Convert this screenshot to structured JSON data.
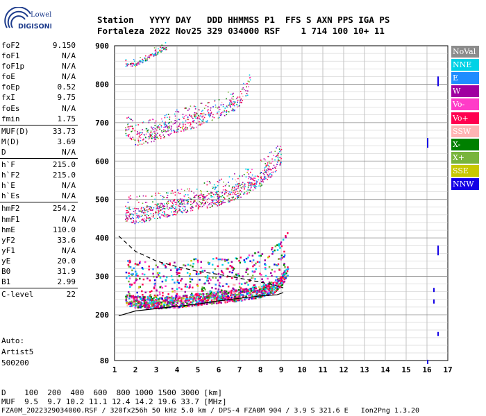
{
  "logo": {
    "line1": "Lowell",
    "line2": "DIGISONDE"
  },
  "header": {
    "line1": "Station   YYYY DAY   DDD HHMMSS P1  FFS S AXN PPS IGA PS",
    "line2": "Fortaleza 2022 Nov25 329 034000 RSF    1 714 100 10+ 11"
  },
  "params": [
    [
      {
        "k": "foF2",
        "v": "9.150"
      },
      {
        "k": "foF1",
        "v": "N/A"
      },
      {
        "k": "foF1p",
        "v": "N/A"
      },
      {
        "k": "foE",
        "v": "N/A"
      },
      {
        "k": "foEp",
        "v": "0.52"
      },
      {
        "k": "fxI",
        "v": "9.75"
      },
      {
        "k": "foEs",
        "v": "N/A"
      },
      {
        "k": "fmin",
        "v": "1.75"
      }
    ],
    [
      {
        "k": "MUF(D)",
        "v": "33.73"
      },
      {
        "k": "M(D)",
        "v": "3.69"
      },
      {
        "k": "D",
        "v": "N/A"
      }
    ],
    [
      {
        "k": "h`F",
        "v": "215.0"
      },
      {
        "k": "h`F2",
        "v": "215.0"
      },
      {
        "k": "h`E",
        "v": "N/A"
      },
      {
        "k": "h`Es",
        "v": "N/A"
      }
    ],
    [
      {
        "k": "hmF2",
        "v": "254.2"
      },
      {
        "k": "hmF1",
        "v": "N/A"
      },
      {
        "k": "hmE",
        "v": "110.0"
      },
      {
        "k": "yF2",
        "v": "33.6"
      },
      {
        "k": "yF1",
        "v": "N/A"
      },
      {
        "k": "yE",
        "v": "20.0"
      },
      {
        "k": "B0",
        "v": "31.9"
      },
      {
        "k": "B1",
        "v": "2.99"
      }
    ],
    [
      {
        "k": "C-level",
        "v": "22"
      }
    ]
  ],
  "auto": {
    "line1": "Auto:",
    "line2": "Artist5",
    "line3": "500200"
  },
  "legend": [
    {
      "label": "NoVal",
      "color": "#8c8c8c"
    },
    {
      "label": "NNE",
      "color": "#00d2e6"
    },
    {
      "label": "E",
      "color": "#1e8cff"
    },
    {
      "label": "W",
      "color": "#a000a0"
    },
    {
      "label": "Vo-",
      "color": "#ff3cc8"
    },
    {
      "label": "Vo+",
      "color": "#ff0050"
    },
    {
      "label": "SSW",
      "color": "#ffb4b4"
    },
    {
      "label": "X-",
      "color": "#008000"
    },
    {
      "label": "X+",
      "color": "#78b43c"
    },
    {
      "label": "SSE",
      "color": "#c8c800"
    },
    {
      "label": "NNW",
      "color": "#1400e6"
    }
  ],
  "chart_data": {
    "type": "scatter",
    "xlim": [
      1,
      17
    ],
    "ylim": [
      80,
      900
    ],
    "x_ticks": [
      "1",
      "2",
      "3",
      "4",
      "5",
      "6",
      "7",
      "8",
      "9",
      "10",
      "11",
      "12",
      "13",
      "14",
      "15",
      "16",
      "17"
    ],
    "y_ticks": [
      "900",
      "800",
      "700",
      "600",
      "500",
      "400",
      "300",
      "200",
      "80"
    ],
    "grid": true,
    "traces": [
      {
        "name": "F trace (1st hop)",
        "points": [
          [
            1.5,
            232
          ],
          [
            2,
            228
          ],
          [
            3,
            225
          ],
          [
            4,
            228
          ],
          [
            5,
            235
          ],
          [
            6,
            240
          ],
          [
            7,
            245
          ],
          [
            8,
            255
          ],
          [
            8.6,
            265
          ],
          [
            9,
            285
          ],
          [
            9.3,
            305
          ]
        ]
      },
      {
        "name": "2nd hop",
        "points": [
          [
            1.5,
            455
          ],
          [
            2,
            448
          ],
          [
            3,
            460
          ],
          [
            4,
            472
          ],
          [
            5,
            485
          ],
          [
            6,
            495
          ],
          [
            7,
            515
          ],
          [
            8,
            545
          ],
          [
            8.6,
            575
          ],
          [
            9,
            605
          ]
        ]
      },
      {
        "name": "3rd hop",
        "points": [
          [
            1.5,
            675
          ],
          [
            2,
            650
          ],
          [
            3,
            665
          ],
          [
            4,
            685
          ],
          [
            5,
            700
          ],
          [
            6,
            720
          ],
          [
            7,
            750
          ],
          [
            7.5,
            790
          ]
        ]
      },
      {
        "name": "4th hop",
        "points": [
          [
            1.5,
            850
          ],
          [
            2,
            850
          ],
          [
            3,
            880
          ],
          [
            3.5,
            895
          ]
        ]
      }
    ],
    "profile_solid": [
      [
        1.2,
        197
      ],
      [
        2,
        210
      ],
      [
        3,
        216
      ],
      [
        4,
        222
      ],
      [
        5,
        228
      ],
      [
        6,
        236
      ],
      [
        7,
        243
      ],
      [
        8,
        249
      ],
      [
        8.8,
        252
      ],
      [
        9.1,
        258
      ]
    ],
    "profile_dashed": [
      [
        1.2,
        405
      ],
      [
        2,
        365
      ],
      [
        3,
        340
      ],
      [
        4,
        325
      ],
      [
        5,
        313
      ],
      [
        6,
        305
      ],
      [
        7,
        295
      ],
      [
        8,
        285
      ],
      [
        8.6,
        278
      ],
      [
        9.1,
        270
      ]
    ],
    "bottom_scale": {
      "d_label": "D",
      "d_values": [
        "100",
        "200",
        "400",
        "600",
        "800",
        "1000",
        "1500",
        "3000",
        "[km]"
      ],
      "muf_label": "MUF",
      "muf_values": [
        "9.5",
        "9.7",
        "10.2",
        "11.1",
        "12.4",
        "14.2",
        "19.6",
        "33.7",
        "[MHz]"
      ]
    }
  },
  "footer": "FZA0M_2022329034000.RSF / 320fx256h 50 kHz 5.0 km / DPS-4 FZA0M 904 / 3.9 S 321.6 E   Ion2Png 1.3.20"
}
